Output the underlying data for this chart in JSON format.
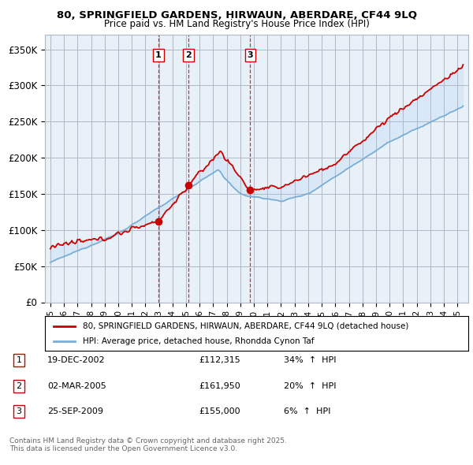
{
  "title1": "80, SPRINGFIELD GARDENS, HIRWAUN, ABERDARE, CF44 9LQ",
  "title2": "Price paid vs. HM Land Registry's House Price Index (HPI)",
  "ylabel_ticks": [
    "£0",
    "£50K",
    "£100K",
    "£150K",
    "£200K",
    "£250K",
    "£300K",
    "£350K"
  ],
  "ytick_values": [
    0,
    50000,
    100000,
    150000,
    200000,
    250000,
    300000,
    350000
  ],
  "ylim": [
    0,
    370000
  ],
  "xtick_years": [
    1995,
    1996,
    1997,
    1998,
    1999,
    2000,
    2001,
    2002,
    2003,
    2004,
    2005,
    2006,
    2007,
    2008,
    2009,
    2010,
    2011,
    2012,
    2013,
    2014,
    2015,
    2016,
    2017,
    2018,
    2019,
    2020,
    2021,
    2022,
    2023,
    2024,
    2025
  ],
  "transactions": [
    {
      "num": 1,
      "date": "19-DEC-2002",
      "price": 112315,
      "hpi_pct": "34%",
      "hpi_dir": "↑",
      "x_year": 2002.96
    },
    {
      "num": 2,
      "date": "02-MAR-2005",
      "price": 161950,
      "hpi_pct": "20%",
      "hpi_dir": "↑",
      "x_year": 2005.17
    },
    {
      "num": 3,
      "date": "25-SEP-2009",
      "price": 155000,
      "hpi_pct": "6%",
      "hpi_dir": "↑",
      "x_year": 2009.73
    }
  ],
  "legend_line1": "80, SPRINGFIELD GARDENS, HIRWAUN, ABERDARE, CF44 9LQ (detached house)",
  "legend_line2": "HPI: Average price, detached house, Rhondda Cynon Taf",
  "footer1": "Contains HM Land Registry data © Crown copyright and database right 2025.",
  "footer2": "This data is licensed under the Open Government Licence v3.0.",
  "red_color": "#cc0000",
  "blue_color": "#7aaed6",
  "fill_color": "#d0e4f5",
  "bg_plot": "#e8f0f8",
  "dashed_color": "#cc0000",
  "bg_color": "#ffffff",
  "grid_color": "#b0b8c8"
}
